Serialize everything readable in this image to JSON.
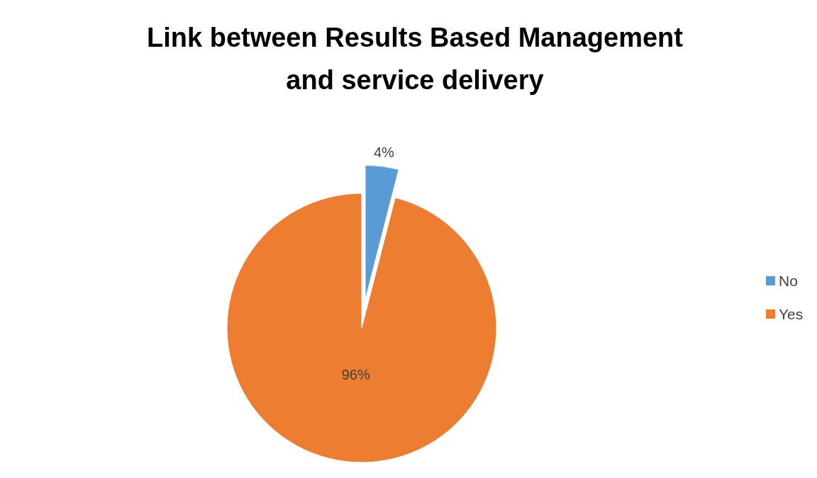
{
  "chart_data": {
    "type": "pie",
    "title": "Link between Results Based Management and service delivery",
    "categories": [
      "No",
      "Yes"
    ],
    "values": [
      4,
      96
    ],
    "colors": [
      "#5b9bd5",
      "#ed7d31"
    ],
    "value_labels": [
      "4%",
      "96%"
    ],
    "legend": "right"
  }
}
